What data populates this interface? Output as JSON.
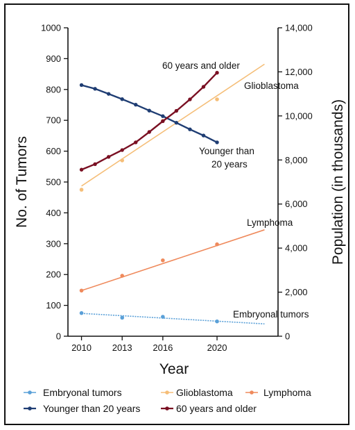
{
  "chart_data": {
    "type": "line",
    "title": "",
    "xlabel": "Year",
    "ylabel": "No. of Tumors",
    "y2label": "Population (in thousands)",
    "xticks": [
      2010,
      2013,
      2016,
      2020
    ],
    "yticks": [
      0,
      100,
      200,
      300,
      400,
      500,
      600,
      700,
      800,
      900,
      1000
    ],
    "y2ticks": [
      "0",
      "2,000",
      "4,000",
      "6,000",
      "8,000",
      "10,000",
      "12,000",
      "14,000"
    ],
    "xlim": [
      2009,
      2024.5
    ],
    "ylim": [
      0,
      1000
    ],
    "y2lim": [
      0,
      14000
    ],
    "grid": false,
    "legend_position": "bottom",
    "series": [
      {
        "name": "Embryonal tumors",
        "axis": "left",
        "color": "#5aa0d8",
        "points": {
          "x": [
            2010,
            2013,
            2016,
            2020
          ],
          "y": [
            75,
            60,
            63,
            48
          ]
        },
        "trend": {
          "x": [
            2010,
            2023.5
          ],
          "y": [
            74,
            40
          ]
        }
      },
      {
        "name": "Glioblastoma",
        "axis": "left",
        "color": "#f5be78",
        "points": {
          "x": [
            2010,
            2013,
            2016,
            2020
          ],
          "y": [
            475,
            570,
            698,
            768
          ]
        },
        "trend": {
          "x": [
            2010,
            2023.5
          ],
          "y": [
            487,
            882
          ]
        }
      },
      {
        "name": "Lymphoma",
        "axis": "left",
        "color": "#ef8a5c",
        "points": {
          "x": [
            2010,
            2013,
            2016,
            2020
          ],
          "y": [
            148,
            196,
            246,
            298
          ]
        },
        "trend": {
          "x": [
            2010,
            2023.5
          ],
          "y": [
            148,
            345
          ]
        }
      },
      {
        "name": "Younger than 20 years",
        "axis": "right",
        "color": "#1f3d73",
        "x": [
          2010,
          2011,
          2012,
          2013,
          2014,
          2015,
          2016,
          2017,
          2018,
          2019,
          2020
        ],
        "y": [
          11400,
          11230,
          11000,
          10760,
          10510,
          10240,
          9990,
          9690,
          9390,
          9110,
          8800
        ]
      },
      {
        "name": "60 years and older",
        "axis": "right",
        "color": "#7a1023",
        "x": [
          2010,
          2011,
          2012,
          2013,
          2014,
          2015,
          2016,
          2017,
          2018,
          2019,
          2020
        ],
        "y": [
          7560,
          7810,
          8140,
          8450,
          8800,
          9270,
          9760,
          10230,
          10750,
          11320,
          11960
        ]
      }
    ],
    "annotations": [
      "60 years and older",
      "Glioblastoma",
      "Younger than",
      "20 years",
      "Lymphoma",
      "Embryonal tumors"
    ],
    "legend": [
      "Embryonal tumors",
      "Glioblastoma",
      "Lymphoma",
      "Younger than 20 years",
      "60 years and older"
    ]
  }
}
